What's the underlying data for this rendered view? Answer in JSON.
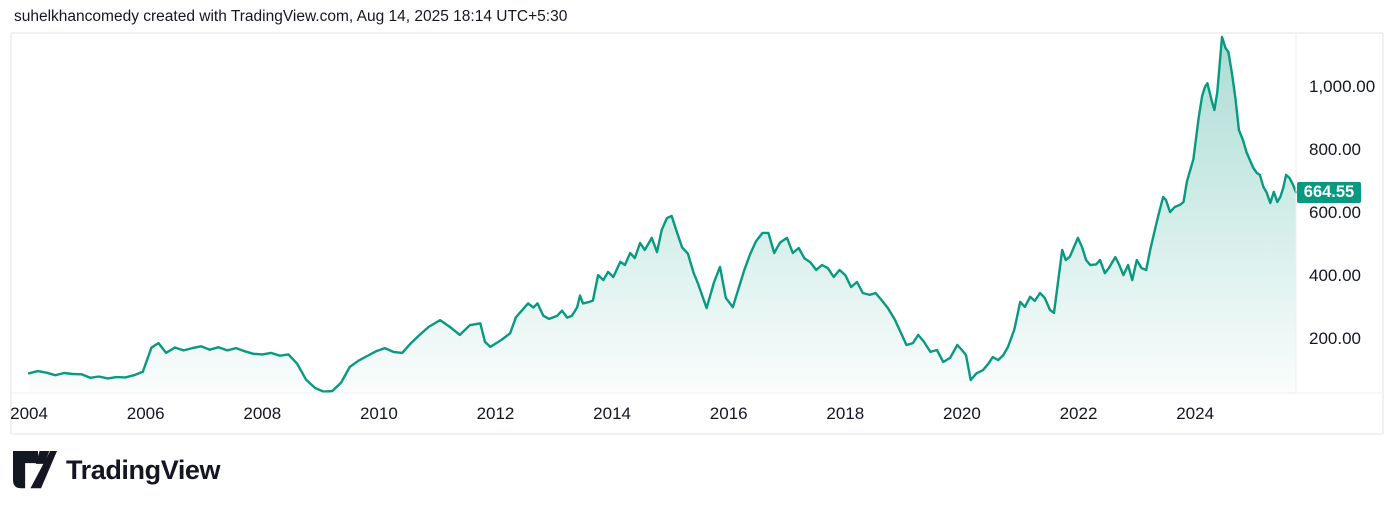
{
  "header": {
    "attribution": "suhelkhancomedy created with TradingView.com, Aug 14, 2025 18:14 UTC+5:30"
  },
  "branding": {
    "logo_text": "TradingView",
    "logo_color": "#131722"
  },
  "frame": {
    "border_color": "#e0e3eb",
    "separator_color": "#edeff3"
  },
  "price_scale": {
    "side": "right",
    "labels": [
      {
        "value": 1000,
        "text": "1,000.00"
      },
      {
        "value": 800,
        "text": "800.00"
      },
      {
        "value": 600,
        "text": "600.00"
      },
      {
        "value": 400,
        "text": "400.00"
      },
      {
        "value": 200,
        "text": "200.00"
      }
    ],
    "last_price": {
      "value": 664.55,
      "text": "664.55",
      "badge_color": "#089981",
      "text_color": "#ffffff"
    }
  },
  "time_scale": {
    "labels": [
      {
        "year": 2004,
        "text": "2004"
      },
      {
        "year": 2006,
        "text": "2006"
      },
      {
        "year": 2008,
        "text": "2008"
      },
      {
        "year": 2010,
        "text": "2010"
      },
      {
        "year": 2012,
        "text": "2012"
      },
      {
        "year": 2014,
        "text": "2014"
      },
      {
        "year": 2016,
        "text": "2016"
      },
      {
        "year": 2018,
        "text": "2018"
      },
      {
        "year": 2020,
        "text": "2020"
      },
      {
        "year": 2022,
        "text": "2022"
      },
      {
        "year": 2024,
        "text": "2024"
      }
    ]
  },
  "chart_data": {
    "type": "area",
    "title": "",
    "xlabel": "",
    "ylabel": "",
    "grid": false,
    "legend": false,
    "x_range": [
      2003.69,
      2025.73
    ],
    "y_range": [
      27.6,
      1170.6
    ],
    "x_ticks": [
      2004,
      2006,
      2008,
      2010,
      2012,
      2014,
      2016,
      2018,
      2020,
      2022,
      2024
    ],
    "y_ticks": [
      200,
      400,
      600,
      800,
      1000
    ],
    "last_price": 664.55,
    "line_color": "#089981",
    "line_width": 2.4,
    "fill_gradient_top": "rgba(8,153,129,0.34)",
    "fill_gradient_bottom": "rgba(8,153,129,0.02)",
    "series": [
      {
        "name": "price",
        "points": [
          [
            2004.0,
            90
          ],
          [
            2004.15,
            97
          ],
          [
            2004.3,
            92
          ],
          [
            2004.45,
            84
          ],
          [
            2004.6,
            91
          ],
          [
            2004.75,
            88
          ],
          [
            2004.9,
            87
          ],
          [
            2005.05,
            76
          ],
          [
            2005.2,
            80
          ],
          [
            2005.35,
            74
          ],
          [
            2005.5,
            78
          ],
          [
            2005.65,
            77
          ],
          [
            2005.8,
            84
          ],
          [
            2005.95,
            95
          ],
          [
            2006.1,
            172
          ],
          [
            2006.22,
            186
          ],
          [
            2006.35,
            155
          ],
          [
            2006.5,
            172
          ],
          [
            2006.65,
            163
          ],
          [
            2006.8,
            170
          ],
          [
            2006.95,
            176
          ],
          [
            2007.1,
            165
          ],
          [
            2007.25,
            173
          ],
          [
            2007.4,
            163
          ],
          [
            2007.55,
            170
          ],
          [
            2007.7,
            160
          ],
          [
            2007.85,
            152
          ],
          [
            2008.0,
            150
          ],
          [
            2008.15,
            155
          ],
          [
            2008.3,
            146
          ],
          [
            2008.45,
            150
          ],
          [
            2008.6,
            120
          ],
          [
            2008.75,
            70
          ],
          [
            2008.9,
            44
          ],
          [
            2009.05,
            32
          ],
          [
            2009.2,
            34
          ],
          [
            2009.35,
            60
          ],
          [
            2009.5,
            110
          ],
          [
            2009.65,
            130
          ],
          [
            2009.8,
            145
          ],
          [
            2009.95,
            160
          ],
          [
            2010.1,
            170
          ],
          [
            2010.25,
            158
          ],
          [
            2010.4,
            155
          ],
          [
            2010.55,
            186
          ],
          [
            2010.7,
            212
          ],
          [
            2010.85,
            237
          ],
          [
            2011.05,
            259
          ],
          [
            2011.22,
            237
          ],
          [
            2011.39,
            212
          ],
          [
            2011.56,
            243
          ],
          [
            2011.74,
            249
          ],
          [
            2011.82,
            190
          ],
          [
            2011.91,
            174
          ],
          [
            2012.1,
            196
          ],
          [
            2012.25,
            217
          ],
          [
            2012.35,
            268
          ],
          [
            2012.45,
            289
          ],
          [
            2012.56,
            312
          ],
          [
            2012.65,
            299
          ],
          [
            2012.72,
            312
          ],
          [
            2012.82,
            273
          ],
          [
            2012.92,
            263
          ],
          [
            2013.06,
            273
          ],
          [
            2013.14,
            289
          ],
          [
            2013.23,
            267
          ],
          [
            2013.31,
            273
          ],
          [
            2013.4,
            299
          ],
          [
            2013.45,
            337
          ],
          [
            2013.5,
            312
          ],
          [
            2013.59,
            316
          ],
          [
            2013.67,
            321
          ],
          [
            2013.76,
            402
          ],
          [
            2013.85,
            386
          ],
          [
            2013.93,
            412
          ],
          [
            2014.02,
            396
          ],
          [
            2014.14,
            444
          ],
          [
            2014.22,
            434
          ],
          [
            2014.31,
            472
          ],
          [
            2014.39,
            456
          ],
          [
            2014.48,
            504
          ],
          [
            2014.56,
            482
          ],
          [
            2014.68,
            520
          ],
          [
            2014.77,
            475
          ],
          [
            2014.85,
            545
          ],
          [
            2014.94,
            583
          ],
          [
            2015.02,
            590
          ],
          [
            2015.1,
            545
          ],
          [
            2015.2,
            490
          ],
          [
            2015.3,
            470
          ],
          [
            2015.4,
            408
          ],
          [
            2015.47,
            377
          ],
          [
            2015.62,
            297
          ],
          [
            2015.75,
            380
          ],
          [
            2015.85,
            428
          ],
          [
            2015.95,
            330
          ],
          [
            2016.07,
            300
          ],
          [
            2016.17,
            360
          ],
          [
            2016.27,
            420
          ],
          [
            2016.37,
            470
          ],
          [
            2016.47,
            510
          ],
          [
            2016.58,
            536
          ],
          [
            2016.68,
            536
          ],
          [
            2016.78,
            472
          ],
          [
            2016.88,
            505
          ],
          [
            2017.0,
            520
          ],
          [
            2017.1,
            472
          ],
          [
            2017.2,
            488
          ],
          [
            2017.3,
            455
          ],
          [
            2017.4,
            443
          ],
          [
            2017.5,
            418
          ],
          [
            2017.6,
            434
          ],
          [
            2017.7,
            424
          ],
          [
            2017.8,
            396
          ],
          [
            2017.9,
            418
          ],
          [
            2018.0,
            402
          ],
          [
            2018.1,
            364
          ],
          [
            2018.2,
            380
          ],
          [
            2018.3,
            345
          ],
          [
            2018.42,
            339
          ],
          [
            2018.52,
            345
          ],
          [
            2018.62,
            323
          ],
          [
            2018.73,
            297
          ],
          [
            2018.85,
            260
          ],
          [
            2018.95,
            220
          ],
          [
            2019.05,
            180
          ],
          [
            2019.16,
            186
          ],
          [
            2019.25,
            212
          ],
          [
            2019.35,
            190
          ],
          [
            2019.46,
            158
          ],
          [
            2019.57,
            164
          ],
          [
            2019.68,
            126
          ],
          [
            2019.8,
            140
          ],
          [
            2019.92,
            180
          ],
          [
            2020.0,
            164
          ],
          [
            2020.07,
            148
          ],
          [
            2020.15,
            69
          ],
          [
            2020.25,
            90
          ],
          [
            2020.36,
            100
          ],
          [
            2020.45,
            120
          ],
          [
            2020.53,
            142
          ],
          [
            2020.62,
            132
          ],
          [
            2020.71,
            148
          ],
          [
            2020.79,
            174
          ],
          [
            2020.9,
            230
          ],
          [
            2021.0,
            317
          ],
          [
            2021.08,
            301
          ],
          [
            2021.17,
            333
          ],
          [
            2021.25,
            320
          ],
          [
            2021.34,
            345
          ],
          [
            2021.42,
            330
          ],
          [
            2021.51,
            291
          ],
          [
            2021.58,
            282
          ],
          [
            2021.72,
            482
          ],
          [
            2021.78,
            450
          ],
          [
            2021.85,
            460
          ],
          [
            2021.99,
            520
          ],
          [
            2022.06,
            491
          ],
          [
            2022.13,
            450
          ],
          [
            2022.2,
            434
          ],
          [
            2022.3,
            436
          ],
          [
            2022.37,
            450
          ],
          [
            2022.45,
            408
          ],
          [
            2022.52,
            424
          ],
          [
            2022.63,
            459
          ],
          [
            2022.7,
            434
          ],
          [
            2022.77,
            402
          ],
          [
            2022.85,
            434
          ],
          [
            2022.92,
            386
          ],
          [
            2023.0,
            450
          ],
          [
            2023.08,
            424
          ],
          [
            2023.16,
            418
          ],
          [
            2023.23,
            482
          ],
          [
            2023.35,
            577
          ],
          [
            2023.45,
            650
          ],
          [
            2023.5,
            640
          ],
          [
            2023.57,
            602
          ],
          [
            2023.65,
            618
          ],
          [
            2023.74,
            625
          ],
          [
            2023.8,
            634
          ],
          [
            2023.86,
            700
          ],
          [
            2023.97,
            770
          ],
          [
            2024.06,
            900
          ],
          [
            2024.12,
            970
          ],
          [
            2024.17,
            1000
          ],
          [
            2024.21,
            1011
          ],
          [
            2024.29,
            952
          ],
          [
            2024.33,
            926
          ],
          [
            2024.38,
            983
          ],
          [
            2024.46,
            1158
          ],
          [
            2024.52,
            1123
          ],
          [
            2024.57,
            1110
          ],
          [
            2024.63,
            1043
          ],
          [
            2024.69,
            964
          ],
          [
            2024.75,
            863
          ],
          [
            2024.82,
            831
          ],
          [
            2024.88,
            793
          ],
          [
            2024.94,
            767
          ],
          [
            2025.0,
            742
          ],
          [
            2025.06,
            726
          ],
          [
            2025.11,
            720
          ],
          [
            2025.17,
            682
          ],
          [
            2025.23,
            663
          ],
          [
            2025.29,
            631
          ],
          [
            2025.35,
            666
          ],
          [
            2025.41,
            634
          ],
          [
            2025.46,
            650
          ],
          [
            2025.51,
            678
          ],
          [
            2025.56,
            720
          ],
          [
            2025.62,
            710
          ],
          [
            2025.68,
            688
          ],
          [
            2025.73,
            664.55
          ]
        ]
      }
    ]
  }
}
